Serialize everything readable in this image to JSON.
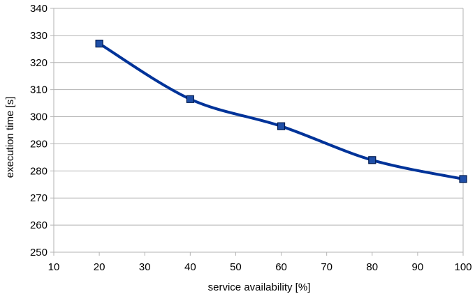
{
  "chart_data": {
    "type": "line",
    "title": "",
    "xlabel": "service availability [%]",
    "ylabel": "execution time [s]",
    "xlim": [
      10,
      100
    ],
    "ylim": [
      250,
      340
    ],
    "xticks": [
      10,
      20,
      30,
      40,
      50,
      60,
      70,
      80,
      90,
      100
    ],
    "yticks": [
      250,
      260,
      270,
      280,
      290,
      300,
      310,
      320,
      330,
      340
    ],
    "grid": "horizontal",
    "legend": "none",
    "series": [
      {
        "color": "#003399",
        "marker": "square",
        "smooth": true,
        "x": [
          20,
          40,
          60,
          80,
          100
        ],
        "y": [
          327,
          306.5,
          296.5,
          284,
          277
        ]
      }
    ]
  }
}
